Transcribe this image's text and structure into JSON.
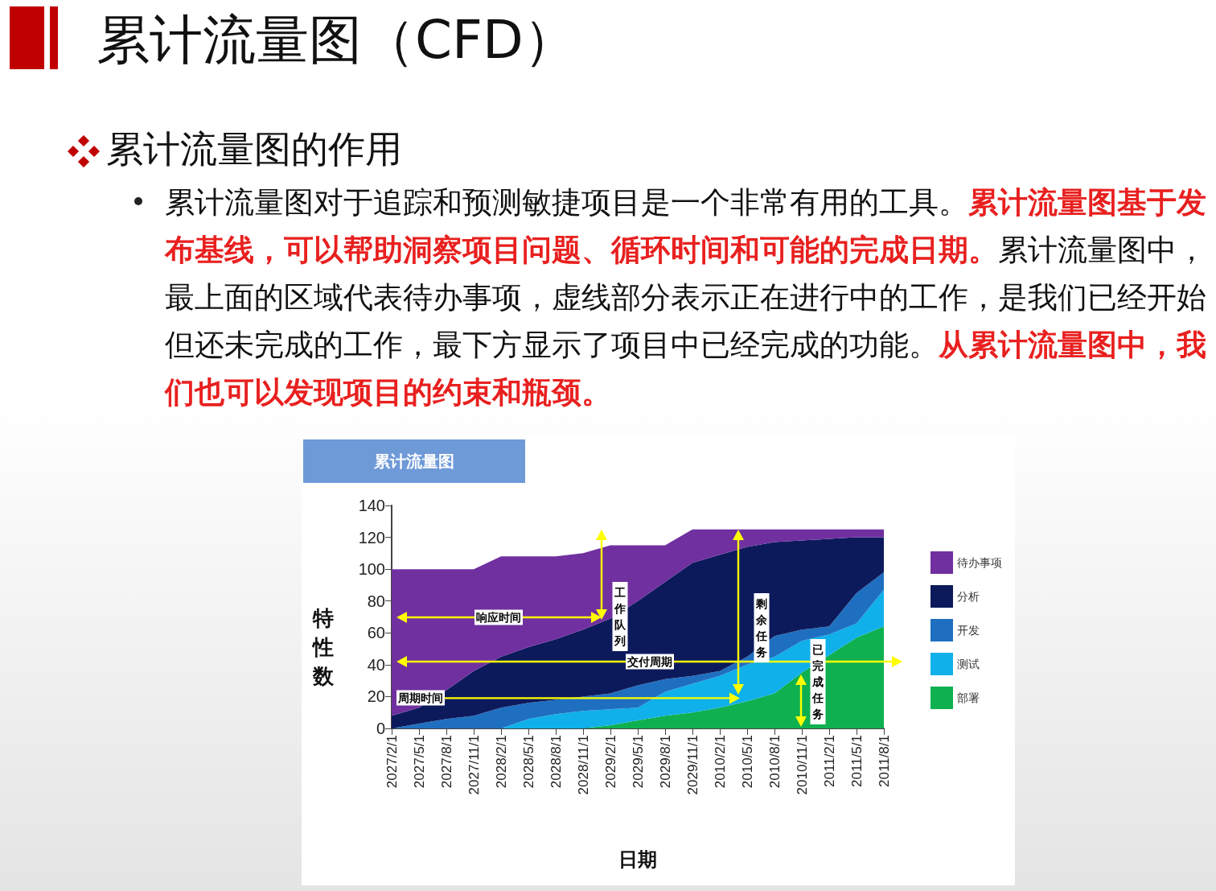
{
  "chart_data": {
    "type": "area",
    "title": "累计流量图（CFD）",
    "subtitle": "累计流量图的作用",
    "xlabel": "日期",
    "ylabel": "特性数",
    "annotations": [
      "累计流量图对于追踪和预测敏捷项目是一个非常有用的工具。",
      "累计流量图基于发布基线，可以帮助洞察项目问题、循环时间和可能的完成日期。",
      "累计流量图中，最上面的区域代表待办事项，虚线部分表示正在进行中的工作，是我们已经开始但还未完成的工作，最下方显示了项目中已经完成的功能。",
      "从累计流量图中，我们也可以发现项目的约束和瓶颈。",
      "累计流量图",
      "响应时间",
      "工作队列",
      "交付周期",
      "周期时间",
      "剩余任务",
      "已完成任务"
    ],
    "categories": [
      "2027/2/1",
      "2027/5/1",
      "2027/8/1",
      "2027/11/1",
      "2028/2/1",
      "2028/5/1",
      "2028/8/1",
      "2028/11/1",
      "2029/2/1",
      "2029/5/1",
      "2029/8/1",
      "2029/11/1",
      "2010/2/1",
      "2010/5/1",
      "2010/8/1",
      "2010/11/1",
      "2011/2/1",
      "2011/5/1",
      "2011/8/1"
    ],
    "series": [
      {
        "name": "部署",
        "color": "#0fb050",
        "values": [
          0,
          0,
          0,
          0,
          0,
          0,
          0,
          0,
          2,
          5,
          8,
          10,
          13,
          17,
          22,
          35,
          46,
          57,
          64
        ]
      },
      {
        "name": "测试",
        "color": "#10b0ea",
        "values": [
          0,
          0,
          0,
          0,
          0,
          6,
          9,
          11,
          10,
          8,
          15,
          18,
          20,
          23,
          23,
          20,
          13,
          9,
          23
        ]
      },
      {
        "name": "开发",
        "color": "#1f6fc0",
        "values": [
          0,
          3,
          6,
          8,
          13,
          10,
          9,
          9,
          10,
          14,
          8,
          5,
          3,
          5,
          13,
          7,
          5,
          19,
          11
        ]
      },
      {
        "name": "分析",
        "color": "#0c1a5c",
        "values": [
          8,
          10,
          18,
          28,
          32,
          35,
          38,
          42,
          47,
          53,
          61,
          71,
          73,
          69,
          59,
          56,
          55,
          35,
          22
        ]
      },
      {
        "name": "待办事项",
        "color": "#7030a0",
        "values": [
          92,
          87,
          76,
          64,
          63,
          57,
          52,
          48,
          46,
          35,
          23,
          21,
          16,
          11,
          8,
          7,
          6,
          5,
          5
        ]
      }
    ],
    "stacked": true,
    "ylim": [
      0,
      140
    ],
    "yticks": [
      0,
      20,
      40,
      60,
      80,
      100,
      120,
      140
    ],
    "legend": "right"
  }
}
